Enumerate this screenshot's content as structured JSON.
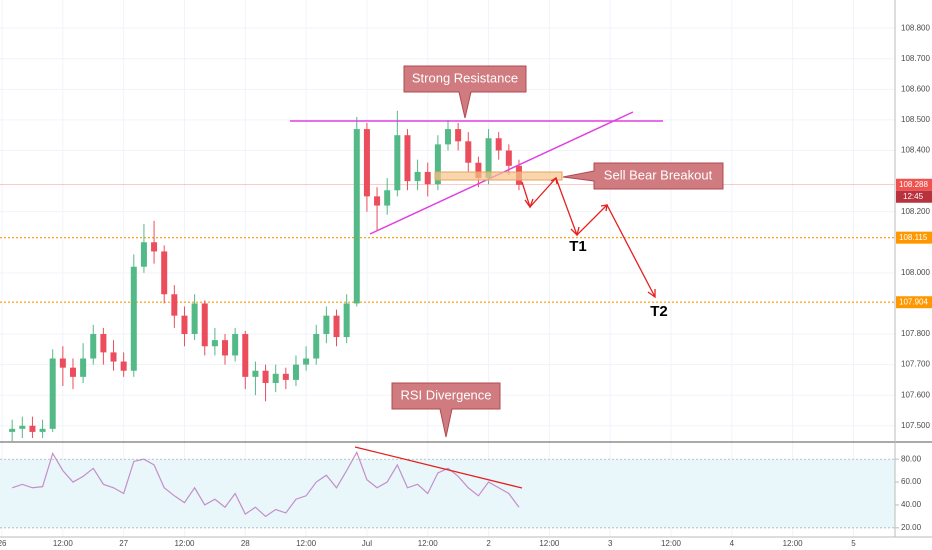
{
  "chart_data": {
    "type": "candlestick",
    "x": [
      2,
      4,
      6,
      8,
      10,
      12,
      14,
      16,
      18,
      20,
      22,
      24,
      26,
      28,
      30,
      32,
      34,
      36,
      38,
      40,
      42,
      44,
      46,
      48,
      50,
      52,
      54,
      56,
      58,
      60,
      62,
      64,
      66,
      68,
      70,
      72,
      74,
      76,
      78,
      80,
      82,
      84,
      86,
      88,
      90,
      92,
      94,
      96,
      98,
      100,
      102
    ],
    "open": [
      107.48,
      107.49,
      107.5,
      107.48,
      107.49,
      107.72,
      107.69,
      107.66,
      107.72,
      107.8,
      107.74,
      107.71,
      107.68,
      108.02,
      108.1,
      108.07,
      107.93,
      107.86,
      107.8,
      107.9,
      107.76,
      107.78,
      107.73,
      107.8,
      107.66,
      107.68,
      107.64,
      107.67,
      107.65,
      107.7,
      107.72,
      107.8,
      107.86,
      107.79,
      107.9,
      108.47,
      108.25,
      108.22,
      108.27,
      108.45,
      108.3,
      108.33,
      108.29,
      108.42,
      108.47,
      108.43,
      108.36,
      108.31,
      108.44,
      108.4,
      108.35
    ],
    "high": [
      107.52,
      107.53,
      107.53,
      107.52,
      107.75,
      107.76,
      107.72,
      107.77,
      107.83,
      107.82,
      107.78,
      107.74,
      108.06,
      108.16,
      108.17,
      108.09,
      107.96,
      107.89,
      107.93,
      107.91,
      107.82,
      107.8,
      107.82,
      107.81,
      107.71,
      107.7,
      107.7,
      107.69,
      107.73,
      107.76,
      107.83,
      107.89,
      107.88,
      107.93,
      108.51,
      108.49,
      108.28,
      108.31,
      108.53,
      108.47,
      108.37,
      108.36,
      108.45,
      108.5,
      108.49,
      108.46,
      108.38,
      108.47,
      108.46,
      108.42,
      108.37
    ],
    "low": [
      107.45,
      107.46,
      107.46,
      107.46,
      107.48,
      107.63,
      107.62,
      107.64,
      107.7,
      107.7,
      107.68,
      107.66,
      107.66,
      108.0,
      108.03,
      107.9,
      107.82,
      107.76,
      107.78,
      107.73,
      107.73,
      107.7,
      107.71,
      107.62,
      107.6,
      107.58,
      107.61,
      107.62,
      107.63,
      107.68,
      107.7,
      107.77,
      107.76,
      107.77,
      107.89,
      108.2,
      108.14,
      108.19,
      108.25,
      108.27,
      108.27,
      108.25,
      108.27,
      108.4,
      108.4,
      108.33,
      108.28,
      108.29,
      108.37,
      108.32,
      108.27
    ],
    "close": [
      107.49,
      107.5,
      107.48,
      107.49,
      107.72,
      107.69,
      107.66,
      107.72,
      107.8,
      107.74,
      107.71,
      107.68,
      108.02,
      108.1,
      108.07,
      107.93,
      107.86,
      107.8,
      107.9,
      107.76,
      107.78,
      107.73,
      107.8,
      107.66,
      107.68,
      107.64,
      107.67,
      107.65,
      107.7,
      107.72,
      107.8,
      107.86,
      107.79,
      107.9,
      108.47,
      108.25,
      108.22,
      108.27,
      108.45,
      108.3,
      108.33,
      108.29,
      108.42,
      108.47,
      108.43,
      108.36,
      108.31,
      108.44,
      108.4,
      108.35,
      108.288
    ],
    "colors": {
      "up": "#53b987",
      "down": "#eb4d5c"
    },
    "xlim": [
      -0.4,
      176.2
    ],
    "xticks": [
      {
        "value": 0,
        "label": "26"
      },
      {
        "value": 12,
        "label": "12:00"
      },
      {
        "value": 24,
        "label": "27"
      },
      {
        "value": 36,
        "label": "12:00"
      },
      {
        "value": 48,
        "label": "28"
      },
      {
        "value": 60,
        "label": "12:00"
      },
      {
        "value": 72,
        "label": "Jul"
      },
      {
        "value": 84,
        "label": "12:00"
      },
      {
        "value": 96,
        "label": "2"
      },
      {
        "value": 108,
        "label": "12:00"
      },
      {
        "value": 120,
        "label": "3"
      },
      {
        "value": 132,
        "label": "12:00"
      },
      {
        "value": 144,
        "label": "4"
      },
      {
        "value": 156,
        "label": "12:00"
      },
      {
        "value": 168,
        "label": "5"
      }
    ],
    "ylim": [
      107.447,
      108.892
    ],
    "yticks": [
      {
        "value": 108.8,
        "label": "108.800"
      },
      {
        "value": 108.7,
        "label": "108.700"
      },
      {
        "value": 108.6,
        "label": "108.600"
      },
      {
        "value": 108.5,
        "label": "108.500"
      },
      {
        "value": 108.4,
        "label": "108.400"
      },
      {
        "value": 108.2,
        "label": "108.200"
      },
      {
        "value": 108.0,
        "label": "108.000"
      },
      {
        "value": 107.8,
        "label": "107.800"
      },
      {
        "value": 107.7,
        "label": "107.700"
      },
      {
        "value": 107.6,
        "label": "107.600"
      },
      {
        "value": 107.5,
        "label": "107.500"
      }
    ],
    "grid": true,
    "price_lines": [
      {
        "value": 108.288,
        "label": "108.288",
        "color": "#ef5350"
      },
      {
        "value": 108.115,
        "label": "108.115",
        "color": "#ff9800"
      },
      {
        "value": 107.904,
        "label": "107.904",
        "color": "#ff9800"
      }
    ],
    "countdown": "12:45",
    "annotations": [
      "Strong Resistance",
      "Sell Bear Breakout",
      "RSI Divergence",
      "T1",
      "T2"
    ],
    "rsi": {
      "type": "line",
      "values": [
        55,
        58,
        55,
        56,
        85,
        70,
        60,
        65,
        72,
        58,
        55,
        50,
        78,
        80,
        75,
        55,
        48,
        42,
        55,
        40,
        45,
        38,
        50,
        32,
        38,
        30,
        36,
        33,
        45,
        48,
        60,
        66,
        55,
        70,
        86,
        62,
        55,
        60,
        75,
        55,
        58,
        50,
        68,
        72,
        65,
        55,
        48,
        60,
        55,
        50,
        38
      ],
      "color": "#c48ec9",
      "ylim": [
        12,
        95
      ],
      "yticks": [
        {
          "value": 80,
          "label": "80.00"
        },
        {
          "value": 60,
          "label": "60.00"
        },
        {
          "value": 40,
          "label": "40.00"
        },
        {
          "value": 20,
          "label": "20.00"
        }
      ],
      "bands": [
        20,
        80
      ],
      "band_color": "#e9f7fb"
    }
  }
}
